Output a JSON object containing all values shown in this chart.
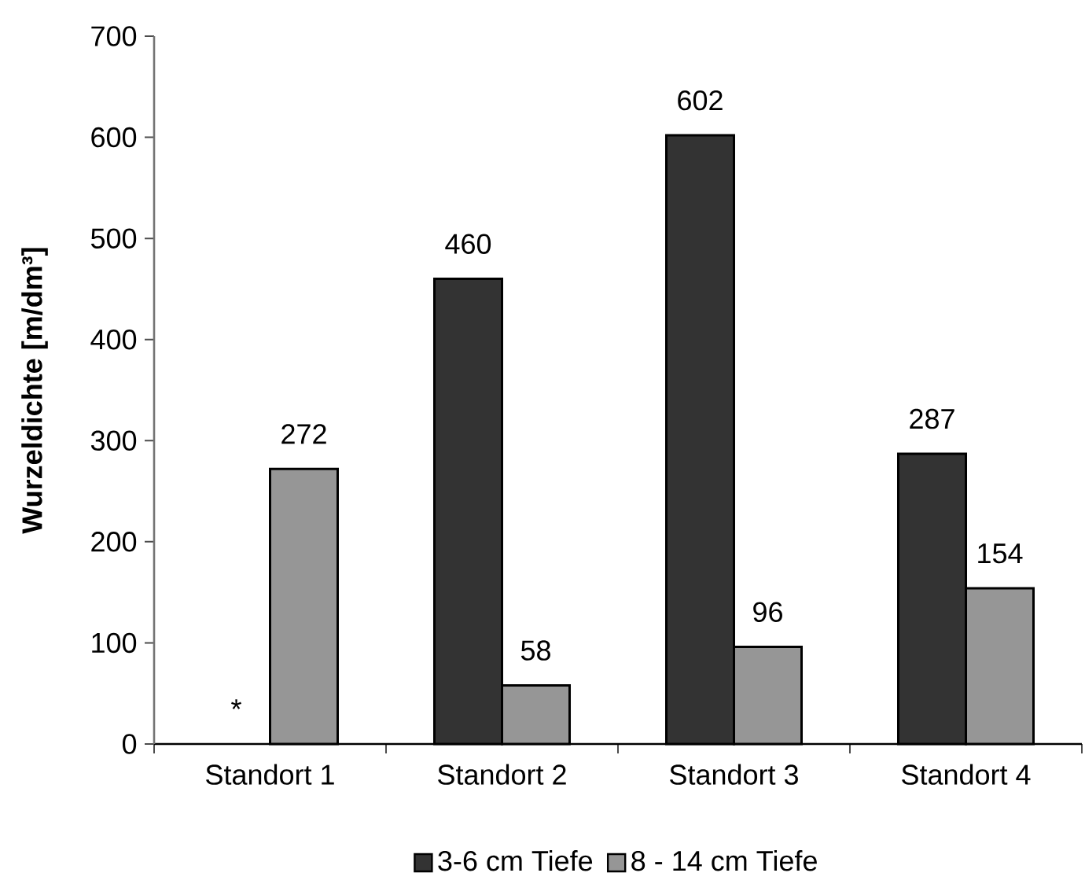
{
  "chart_data": {
    "type": "bar",
    "ylabel": "Wurzeldichte [m/dm³]",
    "categories": [
      "Standort 1",
      "Standort 2",
      "Standort 3",
      "Standort 4"
    ],
    "series": [
      {
        "name": "3-6 cm Tiefe",
        "color": "#333333",
        "values": [
          null,
          460,
          602,
          287
        ],
        "value_labels": [
          "*",
          "460",
          "602",
          "287"
        ]
      },
      {
        "name": "8 - 14 cm Tiefe",
        "color": "#969696",
        "values": [
          272,
          58,
          96,
          154
        ],
        "value_labels": [
          "272",
          "58",
          "96",
          "154"
        ]
      }
    ],
    "ylim": [
      0,
      700
    ],
    "yticks": [
      0,
      100,
      200,
      300,
      400,
      500,
      600,
      700
    ],
    "legend": "bottom"
  }
}
